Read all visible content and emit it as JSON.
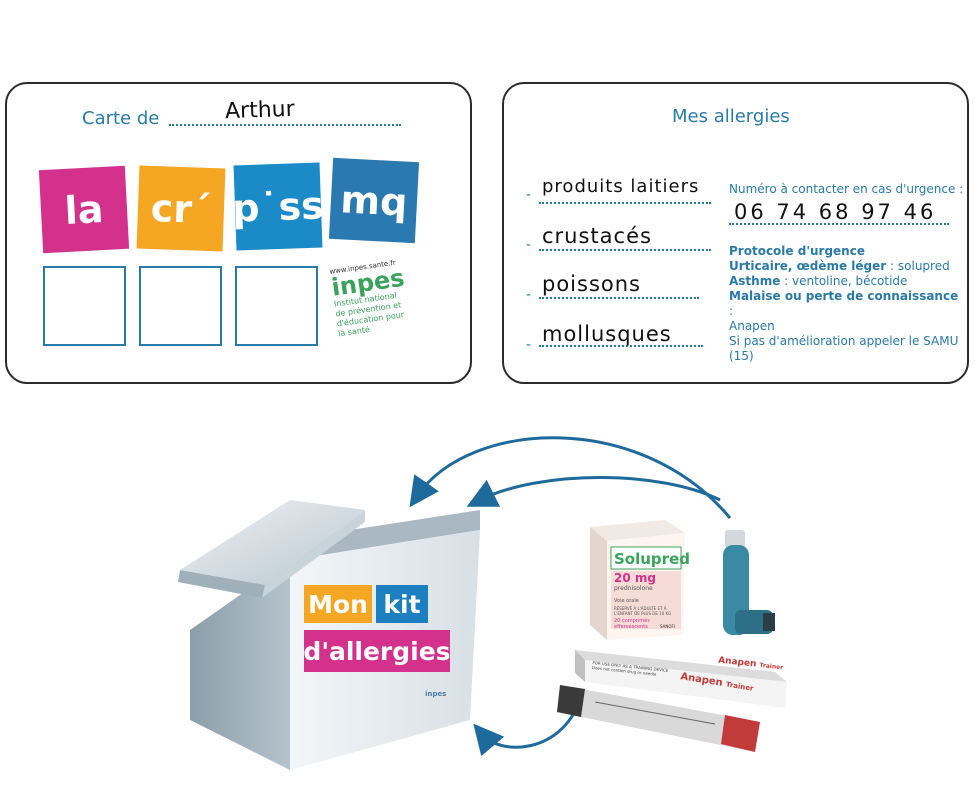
{
  "card_left": {
    "label": "Carte de",
    "name": "Arthur",
    "tiles": [
      {
        "text": "la",
        "color": "#d4318c"
      },
      {
        "text": "cr´",
        "color": "#f5a623"
      },
      {
        "text": "p˙ss",
        "color": "#1b8bc8"
      },
      {
        "text": "mq",
        "color": "#2a79b0"
      }
    ],
    "logo": {
      "url": "www.inpes.sante.fr",
      "name": "inpes",
      "caption_line1": "Institut national",
      "caption_line2": "de prévention et",
      "caption_line3": "d'éducation pour",
      "caption_line4": "la santé"
    }
  },
  "card_right": {
    "title": "Mes allergies",
    "allergies": [
      "produits laitiers",
      "crustacés",
      "poissons",
      "mollusques"
    ],
    "contact_label": "Numéro à contacter en cas d'urgence :",
    "phone": "06 74 68 97 46",
    "protocol_title": "Protocole d'urgence",
    "urticaire_label": "Urticaire, œdème léger",
    "urticaire_value": " : solupred",
    "asthme_label": "Asthme",
    "asthme_value": " : ventoline, bécotide",
    "malaise_label": "Malaise ou perte de connaissance",
    "malaise_colon": " :",
    "malaise_value": "Anapen",
    "samu": "Si pas d'amélioration appeler le SAMU (15)"
  },
  "kit": {
    "mon": "Mon",
    "kit": "kit",
    "allergies": "d'allergies",
    "mon_color": "#f5a623",
    "kit_color": "#1b7fc0",
    "allergies_color": "#d4318c",
    "brand": "inpes"
  },
  "meds": {
    "solupred_name": "Solupred",
    "solupred_dose": "20 mg",
    "solupred_sub": "prednisolone",
    "solupred_route": "Voie orale",
    "solupred_warn1": "RÉSERVÉ À L'ADULTE ET À",
    "solupred_warn2": "L'ENFANT DE PLUS DE 10 KG",
    "solupred_count": "20 comprimés",
    "solupred_type": "effervescents",
    "solupred_maker": "SANOFI",
    "anapen_box": "Anapen",
    "anapen_trainer": "Trainer",
    "anapen_device": "Anapen",
    "anapen_device_trainer": "Trainer",
    "anapen_box_line1": "FOR USE ONLY AS A TRAINING DEVICE",
    "anapen_box_line2": "Does not contain drug or needle"
  }
}
